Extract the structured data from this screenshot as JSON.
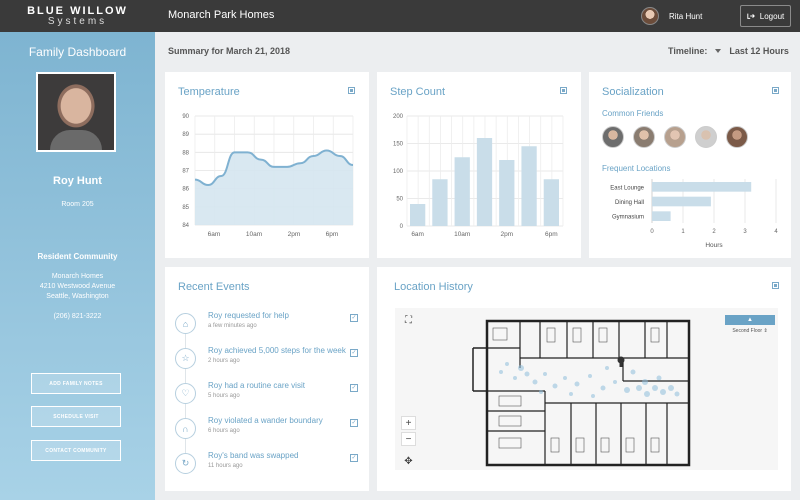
{
  "brand": {
    "line1": "BLUE WILLOW",
    "line2": "Systems"
  },
  "header": {
    "title": "Monarch Park Homes",
    "user": "Rita Hunt",
    "logout": "Logout"
  },
  "sidebar": {
    "title": "Family Dashboard",
    "name": "Roy Hunt",
    "room": "Room 205",
    "community_label": "Resident Community",
    "address": [
      "Monarch Homes",
      "4210 Westwood Avenue",
      "Seattle, Washington"
    ],
    "phone": "(206) 821-3222",
    "buttons": [
      "ADD FAMILY NOTES",
      "SCHEDULE VISIT",
      "CONTACT COMMUNITY"
    ]
  },
  "summary": {
    "text": "Summary for March 21, 2018",
    "timeline_label": "Timeline:",
    "timeline_value": "Last 12 Hours"
  },
  "cards": {
    "temperature": "Temperature",
    "steps": "Step Count",
    "social": "Socialization",
    "events": "Recent Events",
    "location": "Location History"
  },
  "social": {
    "friends_label": "Common Friends",
    "locations_label": "Frequent Locations"
  },
  "events": [
    {
      "text": "Roy requested for help",
      "time": "a few minutes ago",
      "icon": "home-icon"
    },
    {
      "text": "Roy achieved 5,000 steps for the week",
      "time": "2 hours ago",
      "icon": "star-icon"
    },
    {
      "text": "Roy had a routine care visit",
      "time": "5 hours ago",
      "icon": "stethoscope-icon"
    },
    {
      "text": "Roy violated a wander boundary",
      "time": "6 hours ago",
      "icon": "lungs-icon"
    },
    {
      "text": "Roy's band was swapped",
      "time": "11 hours ago",
      "icon": "sync-icon"
    }
  ],
  "map": {
    "floor_button": "▲",
    "floor_select": "Second Floor ⇕",
    "zoom_in": "+",
    "zoom_out": "−",
    "expand": "⛶",
    "pan": "✥"
  },
  "chart_data": [
    {
      "type": "area",
      "title": "Temperature",
      "categories": [
        "6am",
        "10am",
        "2pm",
        "6pm"
      ],
      "x": [
        0,
        1,
        2,
        3,
        4,
        5,
        6,
        7,
        8,
        9,
        10,
        11,
        12
      ],
      "values": [
        86.5,
        86.2,
        86.7,
        88.0,
        88.0,
        87.6,
        87.2,
        87.2,
        87.4,
        87.8,
        88.1,
        87.8,
        87.3
      ],
      "ylim": [
        84,
        90
      ],
      "yticks": [
        84,
        85,
        86,
        87,
        88,
        89,
        90
      ],
      "grid": true
    },
    {
      "type": "bar",
      "title": "Step Count",
      "categories": [
        "6am",
        "",
        "10am",
        "",
        "2pm",
        "",
        "6pm"
      ],
      "values": [
        40,
        85,
        125,
        160,
        120,
        145,
        85
      ],
      "ylim": [
        0,
        200
      ],
      "yticks": [
        0,
        50,
        100,
        150,
        200
      ],
      "grid": true
    },
    {
      "type": "bar",
      "orientation": "horizontal",
      "title": "Frequent Locations",
      "categories": [
        "East Lounge",
        "Dining Hall",
        "Gymnasium"
      ],
      "values": [
        3.2,
        1.9,
        0.6
      ],
      "xlabel": "Hours",
      "xlim": [
        0,
        4
      ],
      "xticks": [
        0,
        1,
        2,
        3,
        4
      ],
      "grid": true
    }
  ],
  "colors": {
    "accent": "#6aa3c6",
    "fill": "#d5e5ef",
    "sidebar_top": "#7eb4d1",
    "sidebar_bottom": "#a8d2e7",
    "topbar": "#3a3a3a"
  }
}
